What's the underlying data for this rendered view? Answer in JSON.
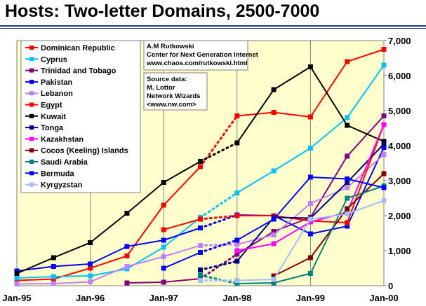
{
  "title": "Hosts: Two-letter Domains, 2500-7000",
  "credits": {
    "author": [
      "A.M Rutkowski",
      "Center for Next Generation Internet",
      "www.chaos.com/rutkowski.html"
    ],
    "source": [
      "Source data:",
      "M. Lottor",
      "Network Wizards",
      "<www.nw.com>"
    ]
  },
  "colors": {
    "background": "#ffffff",
    "plot_bg": "#ffffcc",
    "rule": "#1f3b9c"
  },
  "chart_data": {
    "type": "line",
    "title": "Hosts: Two-letter Domains, 2500-7000",
    "x": [
      "Jan-95",
      "Apr-95",
      "Jul-95",
      "Oct-95",
      "Jan-96",
      "Apr-96",
      "Jul-96",
      "Oct-96",
      "Jan-97",
      "Apr-97",
      "Jul-97",
      "Oct-97",
      "Jan-98",
      "Apr-98",
      "Jul-98",
      "Oct-98",
      "Jan-99",
      "Apr-99",
      "Jul-99",
      "Oct-99",
      "Jan-00"
    ],
    "x_tick_labels": [
      "Jan-95",
      "Jan-96",
      "Jan-97",
      "Jan-98",
      "Jan-99",
      "Jan-00"
    ],
    "y_ticks": [
      "0",
      "1,000",
      "2,000",
      "3,000",
      "4,000",
      "5,000",
      "6,000",
      "7,000"
    ],
    "ylim": [
      0,
      7000
    ],
    "grid": "vertical",
    "legend_position": "top-left",
    "series": [
      {
        "name": "Dominican Republic",
        "color": "#ff0000",
        "marker": "square",
        "values": [
          150,
          null,
          190,
          null,
          500,
          null,
          850,
          null,
          2300,
          null,
          3400,
          null,
          4850,
          null,
          4950,
          null,
          4820,
          null,
          6400,
          null,
          6750
        ],
        "dotted_gaps": [
          [
            10,
            12
          ]
        ]
      },
      {
        "name": "Cyprus",
        "color": "#00c0ff",
        "marker": "square",
        "values": [
          220,
          null,
          260,
          null,
          280,
          null,
          480,
          null,
          1100,
          null,
          1950,
          null,
          2650,
          null,
          3280,
          null,
          3930,
          null,
          4800,
          null,
          6300
        ],
        "dotted_gaps": [
          [
            10,
            12
          ]
        ]
      },
      {
        "name": "Trinidad and Tobago",
        "color": "#800080",
        "marker": "square",
        "values": [
          null,
          null,
          null,
          null,
          null,
          null,
          80,
          null,
          100,
          null,
          200,
          null,
          900,
          null,
          1550,
          null,
          1950,
          null,
          3700,
          null,
          4850
        ],
        "dotted_gaps": [
          [
            10,
            12
          ]
        ]
      },
      {
        "name": "Pakistan",
        "color": "#0000ff",
        "marker": "square",
        "values": [
          420,
          null,
          550,
          null,
          620,
          null,
          1120,
          null,
          1300,
          null,
          1650,
          null,
          2020,
          null,
          2000,
          null,
          1480,
          null,
          1700,
          null,
          3950
        ],
        "dotted_gaps": [
          [
            10,
            12
          ]
        ]
      },
      {
        "name": "Lebanon",
        "color": "#c080ff",
        "marker": "square",
        "values": [
          50,
          null,
          60,
          null,
          110,
          null,
          550,
          null,
          830,
          null,
          1150,
          null,
          1180,
          null,
          1450,
          null,
          2350,
          null,
          2800,
          null,
          3750
        ],
        "dotted_gaps": [
          [
            10,
            12
          ]
        ]
      },
      {
        "name": "Egypt",
        "color": "#ff0000",
        "marker": "square",
        "values": [
          null,
          null,
          null,
          null,
          null,
          null,
          null,
          null,
          1600,
          null,
          1900,
          null,
          2000,
          null,
          2000,
          null,
          1850,
          null,
          1800,
          null,
          4600
        ],
        "dotted_gaps": [
          [
            10,
            12
          ]
        ]
      },
      {
        "name": "Kuwait",
        "color": "#000000",
        "marker": "square",
        "values": [
          350,
          null,
          800,
          null,
          1230,
          null,
          2070,
          null,
          2950,
          null,
          3550,
          null,
          4080,
          null,
          5600,
          null,
          6250,
          null,
          4580,
          null,
          4120
        ],
        "dotted_gaps": [
          [
            10,
            12
          ]
        ]
      },
      {
        "name": "Tonga",
        "color": "#000080",
        "marker": "square",
        "values": [
          null,
          null,
          null,
          null,
          null,
          null,
          null,
          null,
          null,
          null,
          450,
          null,
          700,
          null,
          1950,
          null,
          1930,
          null,
          2950,
          null,
          4050
        ],
        "dotted_gaps": [
          [
            10,
            12
          ]
        ]
      },
      {
        "name": "Kazakhstan",
        "color": "#ff00ff",
        "marker": "square",
        "values": [
          null,
          null,
          null,
          null,
          null,
          null,
          null,
          null,
          null,
          null,
          null,
          null,
          1000,
          null,
          1200,
          null,
          1820,
          null,
          2100,
          null,
          4600
        ],
        "dotted_gaps": []
      },
      {
        "name": "Cocos (Keeling) Islands",
        "color": "#800000",
        "marker": "square",
        "values": [
          null,
          null,
          null,
          null,
          null,
          null,
          null,
          null,
          null,
          null,
          null,
          null,
          null,
          null,
          280,
          null,
          800,
          null,
          2200,
          null,
          3200
        ],
        "dotted_gaps": []
      },
      {
        "name": "Saudi Arabia",
        "color": "#008080",
        "marker": "square",
        "values": [
          null,
          null,
          null,
          null,
          null,
          null,
          null,
          null,
          null,
          null,
          300,
          null,
          60,
          null,
          80,
          null,
          350,
          null,
          2500,
          null,
          2850
        ],
        "dotted_gaps": [
          [
            10,
            12
          ]
        ]
      },
      {
        "name": "Bermuda",
        "color": "#0000ff",
        "marker": "square",
        "values": [
          null,
          null,
          null,
          null,
          null,
          null,
          null,
          null,
          500,
          null,
          950,
          null,
          1300,
          null,
          1900,
          null,
          3100,
          null,
          3050,
          null,
          2800
        ],
        "dotted_gaps": [
          [
            10,
            12
          ]
        ]
      },
      {
        "name": "Kyrgyzstan",
        "color": "#a0c0ff",
        "marker": "square",
        "values": [
          null,
          null,
          null,
          null,
          null,
          null,
          null,
          null,
          null,
          null,
          150,
          null,
          150,
          null,
          180,
          null,
          1900,
          null,
          2050,
          null,
          2430
        ],
        "dotted_gaps": [
          [
            10,
            12
          ]
        ]
      }
    ]
  }
}
